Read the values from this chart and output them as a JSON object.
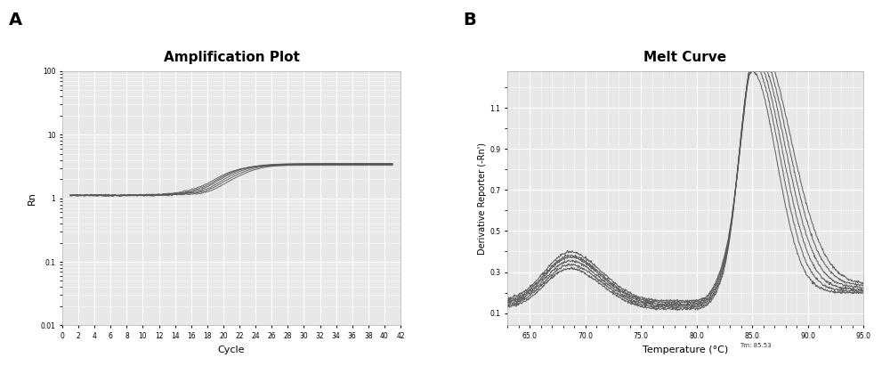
{
  "panel_A_title": "Amplification Plot",
  "panel_B_title": "Melt Curve",
  "panel_A_xlabel": "Cycle",
  "panel_A_ylabel": "Rn",
  "panel_B_xlabel": "Temperature (°C)",
  "panel_B_ylabel": "Derivative Reporter (-Rn')",
  "panel_A_xlim": [
    0,
    42
  ],
  "panel_A_ylim": [
    0.01,
    100
  ],
  "panel_B_xlim": [
    63.0,
    95.0
  ],
  "panel_B_ylim": [
    0.04,
    1.28
  ],
  "panel_B_yticks": [
    0.1,
    0.3,
    0.5,
    0.7,
    0.9,
    1.1
  ],
  "panel_B_xticks": [
    65.0,
    70.0,
    75.0,
    80.0,
    85.0,
    90.0,
    95.0
  ],
  "n_curves_A": 6,
  "n_curves_B": 6,
  "curve_color": "#555555",
  "bg_color": "#e8e8e8",
  "grid_color": "#ffffff",
  "label_A": "A",
  "label_B": "B",
  "Tm_label": "Tm: 85.53"
}
